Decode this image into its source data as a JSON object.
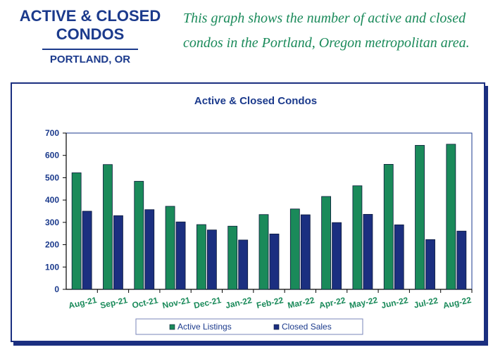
{
  "header": {
    "title": "ACTIVE & CLOSED CONDOS",
    "subtitle": "PORTLAND, OR",
    "description": "This graph shows the number of active and closed condos in the Portland, Oregon metropolitan area."
  },
  "colors": {
    "active": "#1a8a5a",
    "closed": "#1b2f80",
    "axis": "#000000",
    "plot_border": "#1b3a8c"
  },
  "chart_data": {
    "type": "bar",
    "title": "Active & Closed Condos",
    "categories": [
      "Aug-21",
      "Sep-21",
      "Oct-21",
      "Nov-21",
      "Dec-21",
      "Jan-22",
      "Feb-22",
      "Mar-22",
      "Apr-22",
      "May-22",
      "Jun-22",
      "Jul-22",
      "Aug-22"
    ],
    "series": [
      {
        "name": "Active Listings",
        "values": [
          522,
          559,
          484,
          372,
          290,
          283,
          335,
          360,
          416,
          464,
          560,
          645,
          650
        ]
      },
      {
        "name": "Closed Sales",
        "values": [
          350,
          330,
          357,
          302,
          266,
          221,
          248,
          334,
          299,
          336,
          289,
          223,
          261
        ]
      }
    ],
    "ylim": [
      0,
      700
    ],
    "yticks": [
      0,
      100,
      200,
      300,
      400,
      500,
      600,
      700
    ],
    "xlabel": "",
    "ylabel": "",
    "legend_position": "bottom",
    "grid": false
  }
}
